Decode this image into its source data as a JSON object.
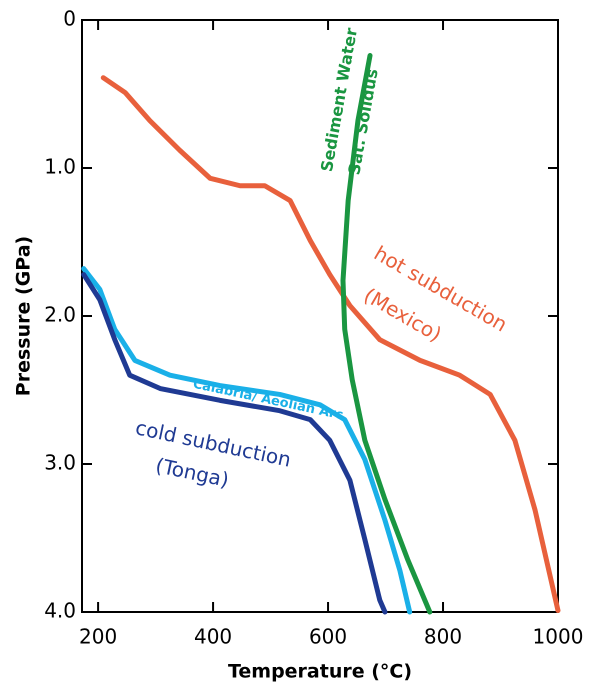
{
  "chart_data": {
    "type": "line",
    "x_label": "Temperature (°C)",
    "y_label": "Pressure (GPa)",
    "xlim": [
      172,
      1000
    ],
    "xticks": [
      200,
      400,
      600,
      800,
      1000
    ],
    "ylim": [
      0,
      4
    ],
    "y_inverted": true,
    "yticks": [
      0,
      {
        "value": 1,
        "label": "1.0"
      },
      {
        "value": 2,
        "label": "2.0"
      },
      {
        "value": 3,
        "label": "3.0"
      },
      {
        "value": 4,
        "label": "4.0"
      }
    ],
    "series": [
      {
        "color": "#e8603c",
        "x": [
          209,
          247,
          290,
          342,
          395,
          447,
          490,
          534,
          569,
          603,
          638,
          690,
          760,
          829,
          882,
          925,
          960,
          1000
        ],
        "values": [
          0.39,
          0.49,
          0.68,
          0.88,
          1.07,
          1.12,
          1.12,
          1.22,
          1.49,
          1.72,
          1.93,
          2.16,
          2.3,
          2.4,
          2.53,
          2.84,
          3.31,
          3.99
        ]
      },
      {
        "color": "#1a9641",
        "x": [
          673,
          652,
          635,
          626,
          629,
          642,
          664,
          699,
          739,
          777
        ],
        "values": [
          0.24,
          0.68,
          1.22,
          1.76,
          2.09,
          2.43,
          2.84,
          3.24,
          3.65,
          4.0
        ]
      },
      {
        "color": "#1ab0e8",
        "x": [
          175,
          203,
          229,
          264,
          325,
          412,
          516,
          586,
          629,
          664,
          699,
          725,
          742
        ],
        "values": [
          1.68,
          1.82,
          2.09,
          2.3,
          2.4,
          2.47,
          2.53,
          2.6,
          2.7,
          2.97,
          3.38,
          3.72,
          4.0
        ]
      },
      {
        "color": "#1f3a93",
        "x": [
          175,
          203,
          229,
          255,
          308,
          412,
          516,
          569,
          603,
          638,
          664,
          690,
          699
        ],
        "values": [
          1.72,
          1.89,
          2.16,
          2.4,
          2.49,
          2.57,
          2.64,
          2.7,
          2.84,
          3.11,
          3.51,
          3.92,
          4.0
        ]
      }
    ],
    "annotations": [
      "Sediment Water",
      "Sat. Solidus",
      "hot subduction",
      "(Mexico)",
      "Calabria/ Aeolian Arc",
      "cold subduction",
      "(Tonga)"
    ]
  }
}
